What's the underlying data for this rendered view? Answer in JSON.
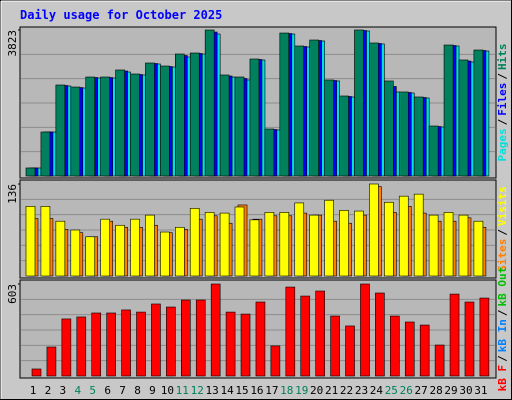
{
  "title": "Daily usage for October 2025",
  "legend_separator": "/",
  "chart_data": [
    {
      "type": "bar",
      "ylim": [
        0,
        3823
      ],
      "yticks": [
        3823
      ],
      "series": [
        {
          "name": "Pages",
          "color": "#00e0e0",
          "values": [
            210,
            1152,
            2357,
            2304,
            2566,
            2566,
            2723,
            2645,
            2933,
            2854,
            3116,
            3194,
            3718,
            2592,
            2514,
            3038,
            1205,
            3718,
            3378,
            3535,
            2488,
            2069,
            3797,
            3457,
            2200,
            2174,
            2043,
            1283,
            3404,
            2985,
            3273
          ]
        },
        {
          "name": "Files",
          "color": "#0000ff",
          "values": [
            210,
            1152,
            2370,
            2317,
            2579,
            2579,
            2750,
            2658,
            2946,
            2867,
            3155,
            3208,
            3770,
            2618,
            2553,
            3051,
            1218,
            3731,
            3391,
            3548,
            2501,
            2082,
            3810,
            3470,
            2344,
            2187,
            2056,
            1296,
            3417,
            3011,
            3286
          ]
        },
        {
          "name": "Hits",
          "color": "#00805c",
          "values": [
            210,
            1152,
            2383,
            2330,
            2592,
            2592,
            2776,
            2671,
            2959,
            2880,
            3194,
            3221,
            3823,
            2645,
            2592,
            3064,
            1231,
            3744,
            3404,
            3561,
            2514,
            2095,
            3823,
            3483,
            2488,
            2200,
            2069,
            1309,
            3430,
            3038,
            3299
          ]
        }
      ]
    },
    {
      "type": "bar",
      "ylim": [
        0,
        136
      ],
      "yticks": [
        136
      ],
      "series": [
        {
          "name": "Sites",
          "color": "#ff8000",
          "values": [
            85,
            85,
            69,
            64,
            58,
            81,
            72,
            72,
            75,
            64,
            69,
            84,
            89,
            78,
            105,
            84,
            89,
            89,
            93,
            90,
            81,
            78,
            90,
            132,
            94,
            103,
            93,
            81,
            81,
            86,
            72
          ]
        },
        {
          "name": "Visits",
          "color": "#ffff00",
          "values": [
            103,
            103,
            81,
            68,
            58,
            84,
            75,
            84,
            90,
            65,
            72,
            100,
            94,
            93,
            102,
            83,
            94,
            94,
            108,
            90,
            112,
            97,
            96,
            136,
            109,
            118,
            121,
            90,
            94,
            90,
            81
          ]
        }
      ]
    },
    {
      "type": "bar",
      "ylim": [
        0,
        603
      ],
      "yticks": [
        603
      ],
      "categories": [
        "1",
        "2",
        "3",
        "4",
        "5",
        "6",
        "7",
        "8",
        "9",
        "10",
        "11",
        "12",
        "13",
        "14",
        "15",
        "16",
        "17",
        "18",
        "19",
        "20",
        "21",
        "22",
        "23",
        "24",
        "25",
        "26",
        "27",
        "28",
        "29",
        "30",
        "31"
      ],
      "highlight_indices": [
        3,
        4,
        10,
        11,
        17,
        18,
        24,
        25
      ],
      "highlight_color": "#00805c",
      "series": [
        {
          "name": "kB F",
          "color": "#ff0000",
          "values": [
            46,
            190,
            374,
            387,
            413,
            413,
            433,
            419,
            472,
            452,
            498,
            498,
            603,
            419,
            406,
            485,
            197,
            583,
            524,
            557,
            393,
            328,
            603,
            544,
            393,
            354,
            334,
            203,
            537,
            485,
            511
          ]
        },
        {
          "name": "kB In",
          "color": "#0080ff",
          "values": [
            0,
            0,
            0,
            0,
            0,
            0,
            0,
            0,
            0,
            0,
            0,
            0,
            0,
            0,
            0,
            0,
            0,
            0,
            0,
            0,
            0,
            0,
            0,
            0,
            0,
            0,
            0,
            0,
            0,
            0,
            0
          ]
        },
        {
          "name": "kB Out",
          "color": "#00c000",
          "values": [
            0,
            0,
            0,
            0,
            0,
            0,
            0,
            0,
            0,
            0,
            0,
            0,
            0,
            0,
            0,
            0,
            0,
            0,
            0,
            0,
            0,
            0,
            0,
            0,
            0,
            0,
            0,
            0,
            0,
            0,
            0
          ]
        }
      ]
    }
  ]
}
